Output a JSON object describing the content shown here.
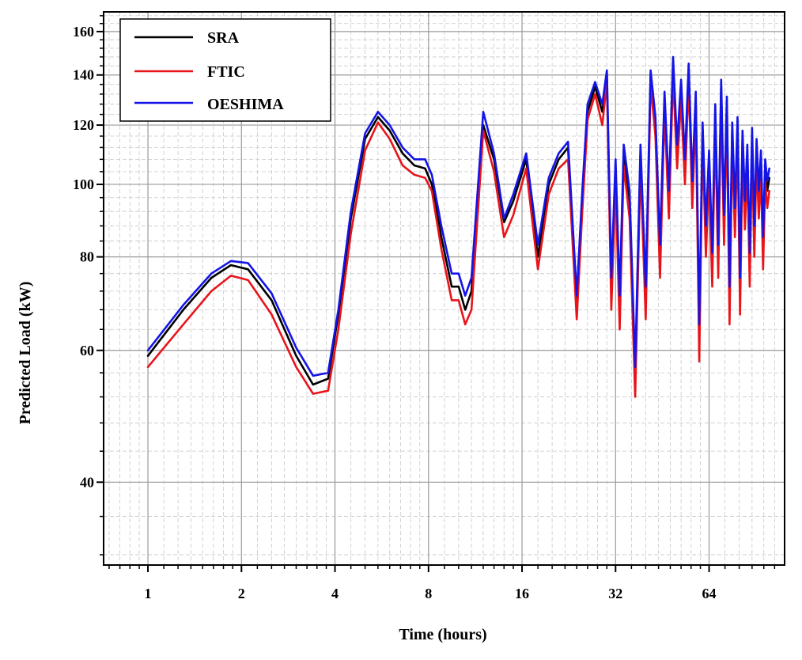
{
  "chart_data": {
    "type": "line",
    "title": "",
    "xlabel": "Time (hours)",
    "ylabel": "Predicted Load (kW)",
    "xscale": "log2",
    "yscale": "log",
    "xlim": [
      0.72,
      112
    ],
    "ylim": [
      31,
      170
    ],
    "xticks": [
      1,
      2,
      4,
      8,
      16,
      32,
      64
    ],
    "xtick_labels": [
      "1",
      "2",
      "4",
      "8",
      "16",
      "32",
      "64"
    ],
    "yticks": [
      40,
      60,
      80,
      100,
      120,
      140,
      160
    ],
    "ytick_labels": [
      "40",
      "60",
      "80",
      "100",
      "120",
      "140",
      "160"
    ],
    "grid": true,
    "legend_position": "top-left",
    "colors": {
      "SRA": "#000000",
      "FTIC": "#e8141a",
      "OESHIMA": "#1414e6"
    },
    "series": [
      {
        "name": "SRA",
        "color": "#000000",
        "x": [
          1,
          1.3,
          1.6,
          1.85,
          2.1,
          2.5,
          3.0,
          3.4,
          3.8,
          4.1,
          4.5,
          5.0,
          5.5,
          6.0,
          6.6,
          7.2,
          7.8,
          8.2,
          8.8,
          9.5,
          10.0,
          10.5,
          11.0,
          12.0,
          13.0,
          14.0,
          15.0,
          16.5,
          18.0,
          19.5,
          21.0,
          22.5,
          24.0,
          25.0,
          26.0,
          27.5,
          29.0,
          30.0,
          31.0,
          32.0,
          33.0,
          34.0,
          35.5,
          37.0,
          38.5,
          40.0,
          41.5,
          43.0,
          44.5,
          46.0,
          47.5,
          49.0,
          50.5,
          52.0,
          53.5,
          55.0,
          56.5,
          58.0,
          59.5,
          61.0,
          62.5,
          64.0,
          65.5,
          67.0,
          68.5,
          70.0,
          71.5,
          73.0,
          74.5,
          76.0,
          77.5,
          79.0,
          80.5,
          82.0,
          83.5,
          85.0,
          86.5,
          88.0,
          89.5,
          91.0,
          92.5,
          94.0,
          95.5,
          97.0,
          98.5,
          100.0
        ],
        "y": [
          59,
          68,
          75,
          78,
          77,
          70,
          59,
          54,
          55,
          67,
          90,
          115,
          123,
          118,
          110,
          106,
          105,
          100,
          85,
          73,
          73,
          68,
          72,
          120,
          108,
          89,
          95,
          108,
          80,
          100,
          108,
          112,
          68,
          95,
          125,
          135,
          125,
          140,
          72,
          105,
          68,
          110,
          95,
          55,
          110,
          70,
          140,
          120,
          80,
          130,
          95,
          145,
          110,
          135,
          105,
          142,
          98,
          130,
          62,
          118,
          85,
          108,
          78,
          125,
          80,
          135,
          88,
          128,
          70,
          118,
          90,
          120,
          72,
          115,
          92,
          110,
          78,
          116,
          85,
          112,
          95,
          108,
          82,
          105,
          98,
          102
        ]
      },
      {
        "name": "FTIC",
        "color": "#e8141a",
        "x": [
          1,
          1.3,
          1.6,
          1.85,
          2.1,
          2.5,
          3.0,
          3.4,
          3.8,
          4.1,
          4.5,
          5.0,
          5.5,
          6.0,
          6.6,
          7.2,
          7.8,
          8.2,
          8.8,
          9.5,
          10.0,
          10.5,
          11.0,
          12.0,
          13.0,
          14.0,
          15.0,
          16.5,
          18.0,
          19.5,
          21.0,
          22.5,
          24.0,
          25.0,
          26.0,
          27.5,
          29.0,
          30.0,
          31.0,
          32.0,
          33.0,
          34.0,
          35.5,
          37.0,
          38.5,
          40.0,
          41.5,
          43.0,
          44.5,
          46.0,
          47.5,
          49.0,
          50.5,
          52.0,
          53.5,
          55.0,
          56.5,
          58.0,
          59.5,
          61.0,
          62.5,
          64.0,
          65.5,
          67.0,
          68.5,
          70.0,
          71.5,
          73.0,
          74.5,
          76.0,
          77.5,
          79.0,
          80.5,
          82.0,
          83.5,
          85.0,
          86.5,
          88.0,
          89.5,
          91.0,
          92.5,
          94.0,
          95.5,
          97.0,
          98.5,
          100.0
        ],
        "y": [
          57,
          65,
          72,
          75.5,
          74.5,
          67,
          57,
          52.5,
          53,
          64,
          86,
          111,
          121,
          115,
          106,
          103,
          102,
          98,
          82,
          70,
          70,
          65,
          68,
          118,
          104,
          85,
          91,
          105,
          77,
          97,
          105,
          108,
          66,
          92,
          122,
          132,
          120,
          137,
          68,
          101,
          64,
          106,
          90,
          52,
          106,
          66,
          136,
          116,
          75,
          126,
          90,
          140,
          105,
          130,
          100,
          138,
          93,
          125,
          58,
          114,
          80,
          104,
          73,
          121,
          75,
          131,
          83,
          124,
          65,
          114,
          85,
          116,
          67,
          111,
          87,
          106,
          73,
          112,
          80,
          108,
          90,
          104,
          77,
          101,
          93,
          98
        ]
      },
      {
        "name": "OESHIMA",
        "color": "#1414e6",
        "x": [
          1,
          1.3,
          1.6,
          1.85,
          2.1,
          2.5,
          3.0,
          3.4,
          3.8,
          4.1,
          4.5,
          5.0,
          5.5,
          6.0,
          6.6,
          7.2,
          7.8,
          8.2,
          8.8,
          9.5,
          10.0,
          10.5,
          11.0,
          12.0,
          13.0,
          14.0,
          15.0,
          16.5,
          18.0,
          19.5,
          21.0,
          22.5,
          24.0,
          25.0,
          26.0,
          27.5,
          29.0,
          30.0,
          31.0,
          32.0,
          33.0,
          34.0,
          35.5,
          37.0,
          38.5,
          40.0,
          41.5,
          43.0,
          44.5,
          46.0,
          47.5,
          49.0,
          50.5,
          52.0,
          53.5,
          55.0,
          56.5,
          58.0,
          59.5,
          61.0,
          62.5,
          64.0,
          65.5,
          67.0,
          68.5,
          70.0,
          71.5,
          73.0,
          74.5,
          76.0,
          77.5,
          79.0,
          80.5,
          82.0,
          83.5,
          85.0,
          86.5,
          88.0,
          89.5,
          91.0,
          92.5,
          94.0,
          95.5,
          97.0,
          98.5,
          100.0
        ],
        "y": [
          60,
          69,
          76,
          79,
          78.5,
          71.5,
          60.5,
          55.5,
          56,
          68,
          92,
          117,
          125,
          120,
          112,
          108,
          108,
          103,
          88,
          76,
          76,
          71,
          75,
          125,
          110,
          90,
          97,
          110,
          83,
          102,
          110,
          114,
          71,
          98,
          128,
          137,
          128,
          142,
          75,
          108,
          71,
          113,
          98,
          57,
          113,
          73,
          142,
          123,
          83,
          133,
          98,
          148,
          113,
          138,
          108,
          145,
          101,
          133,
          65,
          121,
          88,
          111,
          81,
          128,
          83,
          138,
          91,
          131,
          73,
          121,
          93,
          123,
          75,
          118,
          95,
          113,
          81,
          119,
          88,
          115,
          98,
          111,
          85,
          108,
          101,
          105
        ]
      }
    ]
  }
}
